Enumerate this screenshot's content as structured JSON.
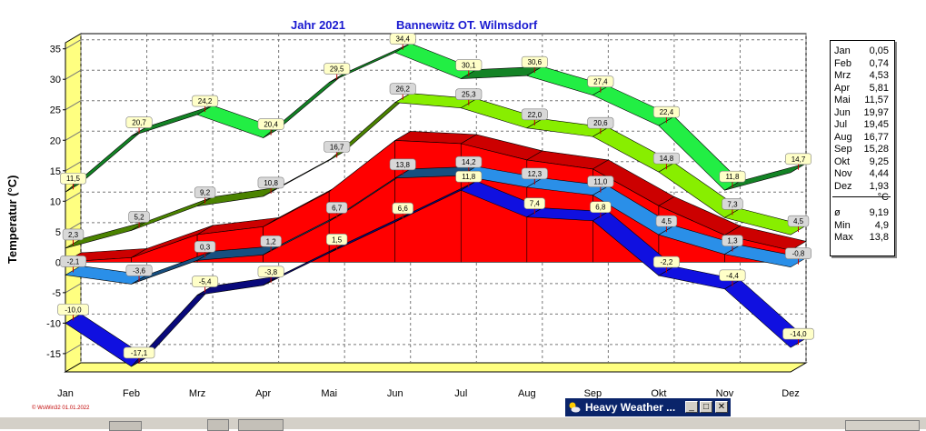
{
  "header": {
    "year_label": "Jahr  2021",
    "station": "Bannewitz OT. Wilmsdorf"
  },
  "y_axis_label": "Temperatur  (°C)",
  "chart_data": {
    "type": "area",
    "categories": [
      "Jan",
      "Feb",
      "Mrz",
      "Apr",
      "Mai",
      "Jun",
      "Jul",
      "Aug",
      "Sep",
      "Okt",
      "Nov",
      "Dez"
    ],
    "ylim": [
      -18,
      36
    ],
    "yticks": [
      35,
      30,
      25,
      20,
      15,
      10,
      5,
      0,
      -5,
      -10,
      -15
    ],
    "grid": true,
    "series": [
      {
        "role": "absolute-max",
        "color": "#22ee44",
        "values": [
          11.5,
          20.7,
          24.2,
          20.4,
          29.5,
          34.4,
          30.1,
          30.6,
          27.4,
          22.4,
          11.8,
          14.7
        ],
        "labels": [
          "11,5",
          "20,7",
          "24,2",
          "20,4",
          "29,5",
          "34,4",
          "30,1",
          "30,6",
          "27,4",
          "22,4",
          "11,8",
          "14,7"
        ]
      },
      {
        "role": "mean-max",
        "color": "#88ee00",
        "values": [
          2.3,
          5.2,
          9.2,
          10.8,
          16.7,
          26.2,
          25.3,
          22.0,
          20.6,
          14.8,
          7.3,
          4.5
        ],
        "labels": [
          "2,3",
          "5,2",
          "9,2",
          "10,8",
          "16,7",
          "26,2",
          "25,3",
          "22,0",
          "20,6",
          "14,8",
          "7,3",
          "4,5"
        ]
      },
      {
        "role": "mean",
        "color": "#ff0000",
        "values": [
          0.05,
          0.74,
          4.53,
          5.81,
          11.57,
          19.97,
          19.45,
          16.77,
          15.28,
          9.25,
          4.44,
          1.93
        ]
      },
      {
        "role": "mean-min",
        "color": "#2a8fe8",
        "values": [
          -2.1,
          -3.6,
          0.3,
          1.2,
          6.7,
          13.8,
          14.2,
          12.3,
          11.0,
          4.5,
          1.3,
          -0.8
        ],
        "labels": [
          "-2,1",
          "-3,6",
          "0,3",
          "1,2",
          "6,7",
          "13,8",
          "14,2",
          "12,3",
          "11,0",
          "4,5",
          "1,3",
          "-0,8"
        ]
      },
      {
        "role": "absolute-min",
        "color": "#1010e0",
        "values": [
          -10.0,
          -17.1,
          -5.4,
          -3.8,
          1.5,
          6.6,
          11.8,
          7.4,
          6.8,
          -2.2,
          -4.4,
          -14.0
        ],
        "labels": [
          "-10,0",
          "-17,1",
          "-5,4",
          "-3,8",
          "1,5",
          "6,6",
          "11,8",
          "7,4",
          "6,8",
          "-2,2",
          "-4,4",
          "-14,0"
        ]
      }
    ]
  },
  "legend": {
    "months": [
      {
        "m": "Jan",
        "v": "0,05"
      },
      {
        "m": "Feb",
        "v": "0,74"
      },
      {
        "m": "Mrz",
        "v": "4,53"
      },
      {
        "m": "Apr",
        "v": "5,81"
      },
      {
        "m": "Mai",
        "v": "11,57"
      },
      {
        "m": "Jun",
        "v": "19,97"
      },
      {
        "m": "Jul",
        "v": "19,45"
      },
      {
        "m": "Aug",
        "v": "16,77"
      },
      {
        "m": "Sep",
        "v": "15,28"
      },
      {
        "m": "Okt",
        "v": "9,25"
      },
      {
        "m": "Nov",
        "v": "4,44"
      },
      {
        "m": "Dez",
        "v": "1,93"
      }
    ],
    "unit": "°C",
    "stats": [
      {
        "m": "ø",
        "v": "9,19"
      },
      {
        "m": "Min",
        "v": "4,9"
      },
      {
        "m": "Max",
        "v": "13,8"
      }
    ]
  },
  "footer": "© WsWin32  01.01.2022",
  "window": {
    "title": "Heavy Weather ...",
    "min_label": "_",
    "max_label": "□",
    "close_label": "✕",
    "icon": "sun-cloud-icon"
  }
}
